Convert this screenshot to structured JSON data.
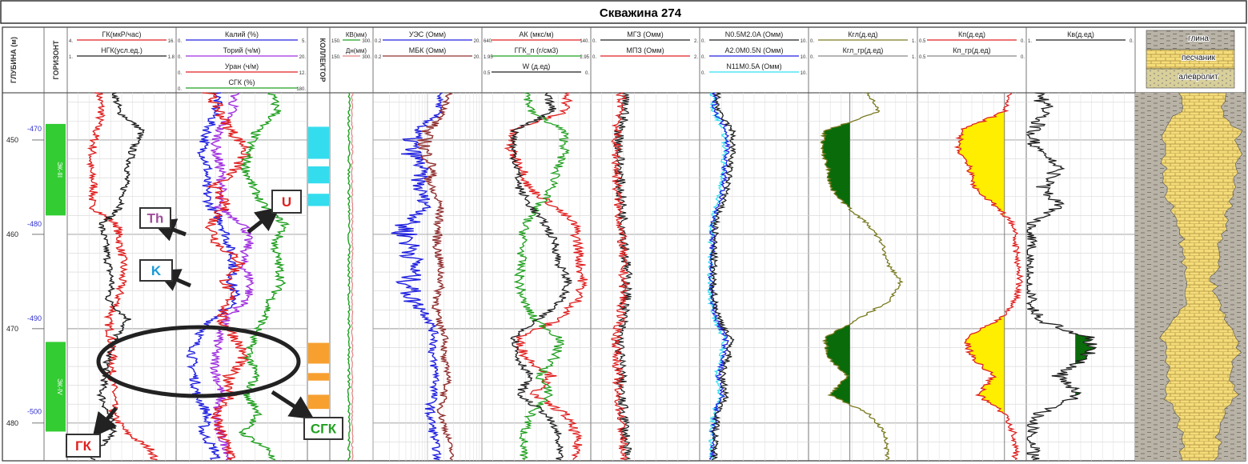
{
  "title": "Скважина 274",
  "depth": {
    "header": "ГЛУБИНА (м)",
    "ticks_right": [
      450,
      460,
      470,
      480
    ],
    "ticks_left": [
      -470,
      -480,
      -490,
      -500
    ]
  },
  "horizon": {
    "header": "ГОРИЗОНТ",
    "zones": [
      {
        "label": "ЭК-III",
        "top": 448.3,
        "bottom": 458.0,
        "color": "#33cc33"
      },
      {
        "label": "ЭК-IV",
        "top": 471.4,
        "bottom": 480.9,
        "color": "#33cc33"
      }
    ]
  },
  "collector": {
    "header": "КОЛЛЕКТОР",
    "blocks": [
      {
        "top": 448.6,
        "bottom": 452.0,
        "color": "#33ddee"
      },
      {
        "top": 452.8,
        "bottom": 454.6,
        "color": "#33ddee"
      },
      {
        "top": 455.7,
        "bottom": 457.0,
        "color": "#33ddee"
      },
      {
        "top": 471.5,
        "bottom": 473.7,
        "color": "#f7a030"
      },
      {
        "top": 474.7,
        "bottom": 475.5,
        "color": "#f7a030"
      },
      {
        "top": 477.0,
        "bottom": 478.5,
        "color": "#f7a030"
      }
    ]
  },
  "track_headers": {
    "gk": [
      {
        "label": "ГК(мкР/час)",
        "min": "4.",
        "max": "16.",
        "color": "#e02020"
      },
      {
        "label": "НГК(усл.ед.)",
        "min": "1.",
        "max": "1.8",
        "color": "#202020"
      }
    ],
    "spectral": [
      {
        "label": "Калий (%)",
        "min": "0.",
        "max": "5.",
        "color": "#2020e0"
      },
      {
        "label": "Торий (ч/м)",
        "min": "0.",
        "max": "20.",
        "color": "#a030e0"
      },
      {
        "label": "Уран (ч/м)",
        "min": "0.",
        "max": "12.",
        "color": "#e02020"
      },
      {
        "label": "СГК (%)",
        "min": "0.",
        "max": "180.",
        "color": "#20a020"
      }
    ],
    "kv": [
      {
        "label": "КВ(мм)",
        "min": "150.",
        "max": "300.",
        "color": "#20a020"
      },
      {
        "label": "Дн(мм)",
        "min": "150.",
        "max": "300.",
        "color": "#e08080"
      }
    ],
    "res": [
      {
        "label": "УЭС (Омм)",
        "min": "0.2",
        "max": "20.",
        "color": "#2020e0"
      },
      {
        "label": "МБК (Омм)",
        "min": "0.2",
        "max": "20.",
        "color": "#903030"
      }
    ],
    "ak": [
      {
        "label": "АК (мкс/м)",
        "min": "640.",
        "max": "140.",
        "color": "#e02020"
      },
      {
        "label": "ГГК_п (г/см3)",
        "min": "1.95",
        "max": "2.95",
        "color": "#20a020"
      },
      {
        "label": "W (д.ед)",
        "min": "0.5",
        "max": "0.",
        "color": "#202020"
      }
    ],
    "mz": [
      {
        "label": "МГЗ (Омм)",
        "min": "0.",
        "max": "2.",
        "color": "#202020"
      },
      {
        "label": "МПЗ (Омм)",
        "min": "0.",
        "max": "2.",
        "color": "#e02020"
      }
    ],
    "bkz": [
      {
        "label": "N0.5M2.0A (Омм)",
        "min": "0.",
        "max": "10.",
        "color": "#202020"
      },
      {
        "label": "A2.0M0.5N (Омм)",
        "min": "0.",
        "max": "10.",
        "color": "#2020e0"
      },
      {
        "label": "N11M0.5A (Омм)",
        "min": "0.",
        "max": "10.",
        "color": "#30e0f0"
      }
    ],
    "kgl": [
      {
        "label": "Кгл(д.ед)",
        "min": "0.",
        "max": "1.",
        "color": "#7a7a20"
      },
      {
        "label": "Кгл_гр(д.ед)",
        "min": "0.",
        "max": "1.",
        "color": "#888888"
      }
    ],
    "kp": [
      {
        "label": "Кп(д.ед)",
        "min": "0.5",
        "max": "0.",
        "color": "#e02020"
      },
      {
        "label": "Кп_гр(д.ед)",
        "min": "0.5",
        "max": "0.",
        "color": "#888888"
      }
    ],
    "kv2": [
      {
        "label": "Кв(д.ед)",
        "min": "1.",
        "max": "0.",
        "color": "#202020"
      }
    ]
  },
  "lithology": {
    "legend": [
      "глина",
      "песчаник",
      "алевролит"
    ],
    "colors": {
      "clay": "#b8b3a6",
      "sand": "#f4dc7a",
      "silt": "#d8cf9a"
    }
  },
  "annotations": [
    {
      "label": "Th",
      "color": "#a0509a"
    },
    {
      "label": "U",
      "color": "#e02020"
    },
    {
      "label": "K",
      "color": "#1a9ad6"
    },
    {
      "label": "ГК",
      "color": "#e02020"
    },
    {
      "label": "СГК",
      "color": "#20a020"
    }
  ],
  "chart_data": {
    "type": "line",
    "depth_range": [
      445,
      484
    ],
    "x": [
      445,
      447,
      449,
      451,
      453,
      455,
      457,
      459,
      461,
      463,
      465,
      467,
      469,
      471,
      473,
      475,
      477,
      479,
      481,
      483
    ],
    "series": [
      {
        "name": "ГК(мкР/час)",
        "values": [
          7.5,
          7.8,
          7.2,
          6.8,
          6.5,
          7.0,
          6.6,
          9.5,
          9.8,
          10.2,
          10.0,
          9.6,
          8.5,
          8.8,
          9.0,
          8.9,
          9.2,
          9.0,
          10.5,
          13.5
        ]
      },
      {
        "name": "НГК(усл.ед.)",
        "values": [
          1.35,
          1.38,
          1.55,
          1.48,
          1.45,
          1.42,
          1.4,
          1.25,
          1.28,
          1.3,
          1.33,
          1.3,
          1.45,
          1.35,
          1.3,
          1.28,
          1.25,
          1.3,
          1.35,
          1.2
        ]
      },
      {
        "name": "Калий (%)",
        "values": [
          1.6,
          1.5,
          1.2,
          1.0,
          1.2,
          1.1,
          1.3,
          1.8,
          2.0,
          2.2,
          2.1,
          2.3,
          1.4,
          0.8,
          0.6,
          0.7,
          0.8,
          1.2,
          1.0,
          1.5
        ]
      },
      {
        "name": "Торий (ч/м)",
        "values": [
          9.0,
          8.5,
          6.5,
          6.0,
          6.8,
          7.0,
          6.2,
          10.5,
          11.0,
          10.0,
          11.5,
          10.8,
          7.5,
          6.5,
          5.8,
          6.2,
          7.0,
          6.0,
          6.5,
          8.0
        ]
      },
      {
        "name": "Уран (ч/м)",
        "values": [
          3.0,
          4.0,
          5.0,
          6.5,
          5.5,
          3.5,
          4.5,
          3.2,
          3.8,
          6.0,
          4.5,
          5.0,
          4.0,
          5.5,
          6.2,
          4.8,
          5.2,
          3.5,
          4.0,
          5.0
        ]
      },
      {
        "name": "СГК (%)",
        "values": [
          130,
          140,
          110,
          100,
          95,
          105,
          120,
          150,
          135,
          140,
          145,
          130,
          120,
          105,
          100,
          110,
          95,
          115,
          90,
          130
        ]
      },
      {
        "name": "УЭС (Омм)",
        "values": [
          3.5,
          3.2,
          1.2,
          1.0,
          1.6,
          1.4,
          2.0,
          0.8,
          1.0,
          1.2,
          1.0,
          1.1,
          2.2,
          2.8,
          2.4,
          3.0,
          2.6,
          2.2,
          2.6,
          3.0
        ]
      },
      {
        "name": "МБК (Омм)",
        "values": [
          5.0,
          4.0,
          2.0,
          1.8,
          2.5,
          2.2,
          3.5,
          3.2,
          3.0,
          3.4,
          3.6,
          3.0,
          3.0,
          4.5,
          3.8,
          5.0,
          4.0,
          3.5,
          4.5,
          5.5
        ]
      },
      {
        "name": "Кгл(д.ед)",
        "values": [
          0.55,
          0.65,
          0.15,
          0.12,
          0.18,
          0.2,
          0.35,
          0.55,
          0.68,
          0.72,
          0.85,
          0.75,
          0.45,
          0.15,
          0.18,
          0.35,
          0.2,
          0.55,
          0.7,
          0.72
        ]
      },
      {
        "name": "Кп(д.ед)",
        "values": [
          0.08,
          0.1,
          0.3,
          0.31,
          0.26,
          0.24,
          0.14,
          0.06,
          0.05,
          0.04,
          0.03,
          0.05,
          0.12,
          0.28,
          0.25,
          0.15,
          0.22,
          0.1,
          0.06,
          0.05
        ]
      },
      {
        "name": "Кв(д.ед)",
        "values": [
          0.9,
          0.8,
          0.95,
          0.9,
          0.7,
          0.85,
          0.7,
          0.98,
          0.98,
          0.98,
          0.98,
          0.98,
          0.9,
          0.4,
          0.45,
          0.7,
          0.5,
          0.9,
          0.95,
          0.95
        ]
      }
    ],
    "grid": true
  }
}
